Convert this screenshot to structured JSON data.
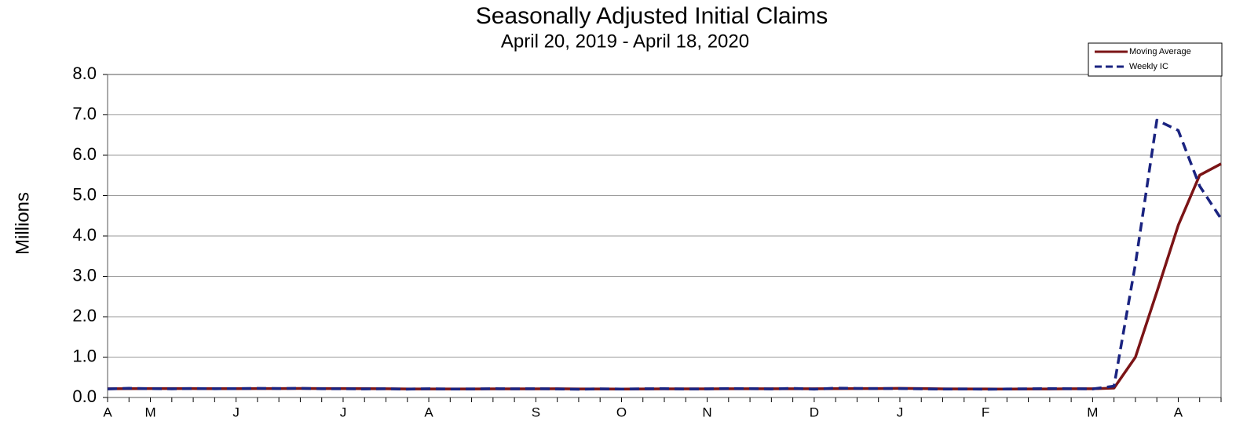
{
  "chart_data": {
    "type": "line",
    "title": "Seasonally Adjusted Initial Claims",
    "subtitle": "April 20, 2019 - April 18, 2020",
    "y_label": "Millions",
    "categories": [
      "A",
      null,
      "M",
      null,
      null,
      null,
      "J",
      null,
      null,
      null,
      null,
      "J",
      null,
      null,
      null,
      "A",
      null,
      null,
      null,
      null,
      "S",
      null,
      null,
      null,
      "O",
      null,
      null,
      null,
      "N",
      null,
      null,
      null,
      null,
      "D",
      null,
      null,
      null,
      "J",
      null,
      null,
      null,
      "F",
      null,
      null,
      null,
      null,
      "M",
      null,
      null,
      null,
      "A",
      null,
      null
    ],
    "series": [
      {
        "name": "Moving Average",
        "color": "#7b1416",
        "dash": false,
        "values": [
          0.215,
          0.218,
          0.22,
          0.22,
          0.22,
          0.218,
          0.219,
          0.22,
          0.221,
          0.223,
          0.222,
          0.22,
          0.218,
          0.215,
          0.212,
          0.212,
          0.212,
          0.211,
          0.214,
          0.214,
          0.214,
          0.215,
          0.211,
          0.211,
          0.209,
          0.21,
          0.214,
          0.213,
          0.214,
          0.216,
          0.216,
          0.216,
          0.217,
          0.215,
          0.219,
          0.222,
          0.221,
          0.226,
          0.22,
          0.214,
          0.211,
          0.21,
          0.209,
          0.21,
          0.212,
          0.215,
          0.216,
          0.232,
          0.998,
          2.613,
          4.265,
          5.506,
          5.787
        ]
      },
      {
        "name": "Weekly IC",
        "color": "#1a2380",
        "dash": true,
        "values": [
          0.212,
          0.227,
          0.218,
          0.214,
          0.222,
          0.217,
          0.219,
          0.225,
          0.221,
          0.227,
          0.217,
          0.216,
          0.211,
          0.216,
          0.206,
          0.217,
          0.209,
          0.211,
          0.218,
          0.213,
          0.217,
          0.21,
          0.204,
          0.214,
          0.209,
          0.215,
          0.218,
          0.211,
          0.213,
          0.222,
          0.218,
          0.212,
          0.225,
          0.206,
          0.231,
          0.224,
          0.22,
          0.222,
          0.214,
          0.208,
          0.212,
          0.204,
          0.21,
          0.215,
          0.22,
          0.217,
          0.211,
          0.282,
          3.307,
          6.867,
          6.615,
          5.237,
          4.427
        ]
      }
    ],
    "ylim": [
      0,
      8
    ],
    "yticks": [
      {
        "value": 0,
        "label": "0.0"
      },
      {
        "value": 1,
        "label": "1.0"
      },
      {
        "value": 2,
        "label": "2.0"
      },
      {
        "value": 3,
        "label": "3.0"
      },
      {
        "value": 4,
        "label": "4.0"
      },
      {
        "value": 5,
        "label": "5.0"
      },
      {
        "value": 6,
        "label": "6.0"
      },
      {
        "value": 7,
        "label": "7.0"
      },
      {
        "value": 8,
        "label": "8.0"
      }
    ],
    "grid": true,
    "legend": "upper right"
  }
}
